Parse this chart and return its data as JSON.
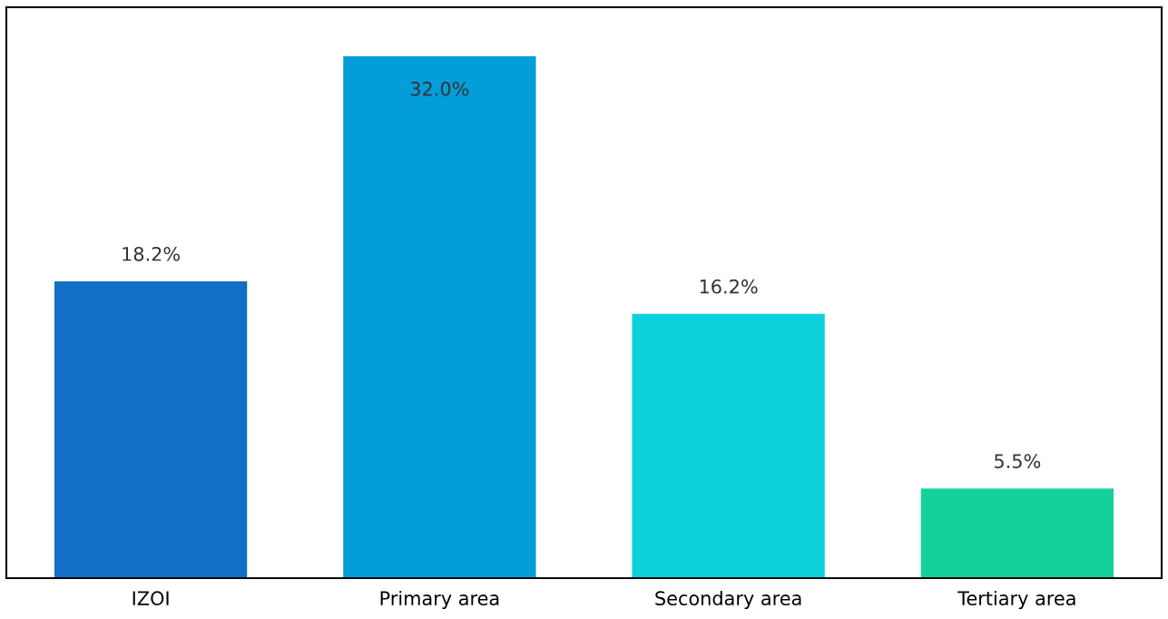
{
  "chart_data": {
    "type": "bar",
    "categories": [
      "IZOI",
      "Primary area",
      "Secondary area",
      "Tertiary area"
    ],
    "values": [
      18.2,
      32.0,
      16.2,
      5.5
    ],
    "colors": [
      "#116fc4",
      "#039dd9",
      "#0dd1da",
      "#14d19b"
    ],
    "value_labels": [
      "18.2%",
      "32.0%",
      "16.2%",
      "5.5%"
    ],
    "ylim": [
      0,
      35
    ],
    "tick_labels": "x",
    "grid": false,
    "legend": false
  }
}
